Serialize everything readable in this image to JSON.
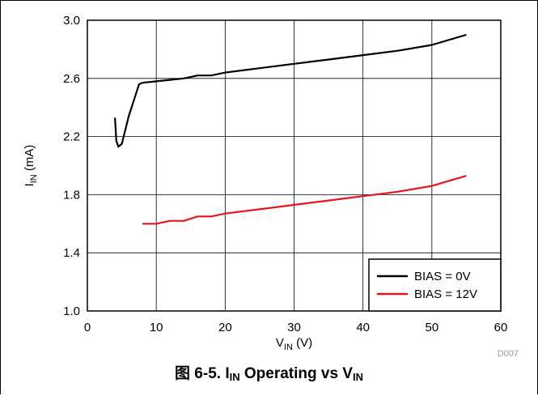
{
  "chart_data": {
    "type": "line",
    "xlabel": {
      "main": "V",
      "sub": "IN",
      "suffix": " (V)"
    },
    "ylabel": {
      "main": "I",
      "sub": "IN",
      "suffix": " (mA)"
    },
    "xlim": [
      0,
      60
    ],
    "ylim": [
      1.0,
      3.0
    ],
    "xticks": [
      "0",
      "10",
      "20",
      "30",
      "40",
      "50",
      "60"
    ],
    "yticks": [
      "1.0",
      "1.4",
      "1.8",
      "2.2",
      "2.6",
      "3.0"
    ],
    "xtick_values": [
      0,
      10,
      20,
      30,
      40,
      50,
      60
    ],
    "ytick_values": [
      1.0,
      1.4,
      1.8,
      2.2,
      2.6,
      3.0
    ],
    "grid": true,
    "legend_position": "bottom-right",
    "watermark": "D007",
    "series": [
      {
        "name": "BIAS = 0V",
        "color": "#000000",
        "x": [
          4,
          4.2,
          4.5,
          5,
          6,
          7.5,
          8,
          10,
          12,
          14,
          16,
          18,
          20,
          25,
          30,
          35,
          40,
          45,
          50,
          55
        ],
        "y": [
          2.33,
          2.17,
          2.13,
          2.15,
          2.34,
          2.56,
          2.57,
          2.58,
          2.59,
          2.6,
          2.62,
          2.62,
          2.64,
          2.67,
          2.7,
          2.73,
          2.76,
          2.79,
          2.83,
          2.9
        ]
      },
      {
        "name": "BIAS = 12V",
        "color": "#e8141c",
        "x": [
          8,
          10,
          12,
          14,
          16,
          18,
          20,
          25,
          30,
          35,
          40,
          45,
          50,
          55
        ],
        "y": [
          1.6,
          1.6,
          1.62,
          1.62,
          1.65,
          1.65,
          1.67,
          1.7,
          1.73,
          1.76,
          1.79,
          1.82,
          1.86,
          1.93
        ]
      }
    ]
  },
  "caption": {
    "prefix": "图 6-5. I",
    "sub1": "IN",
    "middle": " Operating vs V",
    "sub2": "IN"
  }
}
